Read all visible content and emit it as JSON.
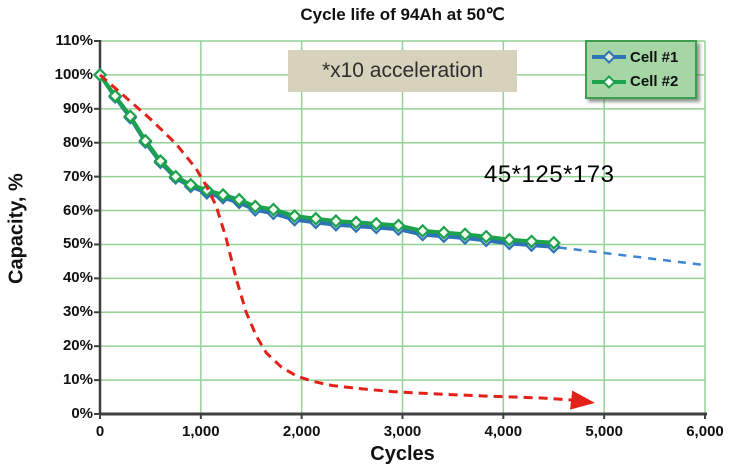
{
  "chart": {
    "title": "Cycle life of 94Ah at  50℃",
    "ylabel": "Capacity, %",
    "xlabel": "Cycles",
    "annotation": "*x10 acceleration",
    "dimensions_label": "45*125*173"
  },
  "colors": {
    "grid": "#92d295",
    "axis": "#3f3f3f",
    "plot_border": "#92d295",
    "legend_fill": "#a6d6a6",
    "legend_border": "#3e9e4e",
    "annotation_bg": "#d6d2bc",
    "cell1_blue": "#2e74b5",
    "cell2_green": "#1ca24c",
    "acceleration_red": "#e32119",
    "extrapolation_blue": "#3c86d2"
  },
  "chart_data": {
    "type": "line",
    "title": "Cycle life of 94Ah at 50℃",
    "xlabel": "Cycles",
    "ylabel": "Capacity, %",
    "xlim": [
      0,
      6000
    ],
    "ylim": [
      0,
      110
    ],
    "grid": true,
    "legend_position": "top-right",
    "x_ticks": [
      {
        "value": 0,
        "label": "0"
      },
      {
        "value": 1000,
        "label": "1,000"
      },
      {
        "value": 2000,
        "label": "2,000"
      },
      {
        "value": 3000,
        "label": "3,000"
      },
      {
        "value": 4000,
        "label": "4,000"
      },
      {
        "value": 5000,
        "label": "5,000"
      },
      {
        "value": 6000,
        "label": "6,000"
      }
    ],
    "y_ticks": [
      {
        "value": 0,
        "label": "0%"
      },
      {
        "value": 10,
        "label": "10%"
      },
      {
        "value": 20,
        "label": "20%"
      },
      {
        "value": 30,
        "label": "30%"
      },
      {
        "value": 40,
        "label": "40%"
      },
      {
        "value": 50,
        "label": "50%"
      },
      {
        "value": 60,
        "label": "60%"
      },
      {
        "value": 70,
        "label": "70%"
      },
      {
        "value": 80,
        "label": "80%"
      },
      {
        "value": 90,
        "label": "90%"
      },
      {
        "value": 100,
        "label": "100%"
      },
      {
        "value": 110,
        "label": "110%"
      }
    ],
    "series": [
      {
        "name": "Cell #1",
        "color": "#2e74b5",
        "marker": "diamond",
        "marker_fill": "#eaf3fb",
        "style": "solid",
        "points": [
          [
            0,
            100
          ],
          [
            150,
            93.5
          ],
          [
            300,
            87.4
          ],
          [
            450,
            80.2
          ],
          [
            600,
            74.2
          ],
          [
            750,
            69.6
          ],
          [
            900,
            67.1
          ],
          [
            1060,
            65.2
          ],
          [
            1220,
            63.8
          ],
          [
            1380,
            62.4
          ],
          [
            1540,
            60.2
          ],
          [
            1720,
            59.2
          ],
          [
            1930,
            57.3
          ],
          [
            2140,
            56.5
          ],
          [
            2340,
            55.8
          ],
          [
            2540,
            55.4
          ],
          [
            2740,
            55.0
          ],
          [
            2960,
            54.5
          ],
          [
            3200,
            52.9
          ],
          [
            3410,
            52.4
          ],
          [
            3620,
            51.9
          ],
          [
            3830,
            51.2
          ],
          [
            4060,
            50.3
          ],
          [
            4280,
            49.8
          ],
          [
            4500,
            49.3
          ]
        ]
      },
      {
        "name": "Cell #2",
        "color": "#1ca24c",
        "marker": "diamond",
        "marker_fill": "#f5faf0",
        "style": "solid",
        "points": [
          [
            0,
            100
          ],
          [
            150,
            93.8
          ],
          [
            300,
            87.8
          ],
          [
            450,
            80.6
          ],
          [
            600,
            74.6
          ],
          [
            750,
            70.0
          ],
          [
            900,
            67.6
          ],
          [
            1060,
            66.0
          ],
          [
            1220,
            64.6
          ],
          [
            1380,
            63.2
          ],
          [
            1540,
            61.2
          ],
          [
            1720,
            60.3
          ],
          [
            1930,
            58.4
          ],
          [
            2140,
            57.6
          ],
          [
            2340,
            56.9
          ],
          [
            2540,
            56.5
          ],
          [
            2740,
            56.1
          ],
          [
            2960,
            55.6
          ],
          [
            3200,
            54.0
          ],
          [
            3410,
            53.5
          ],
          [
            3620,
            53.0
          ],
          [
            3830,
            52.3
          ],
          [
            4060,
            51.4
          ],
          [
            4280,
            50.9
          ],
          [
            4500,
            50.5
          ]
        ]
      },
      {
        "name": "x10-acceleration-reference",
        "color": "#e32119",
        "marker": "none",
        "style": "dashed",
        "arrow_end": true,
        "in_legend": false,
        "points": [
          [
            0,
            100
          ],
          [
            250,
            93.5
          ],
          [
            500,
            87
          ],
          [
            750,
            79.8
          ],
          [
            950,
            72.5
          ],
          [
            1050,
            67.5
          ],
          [
            1150,
            61.5
          ],
          [
            1250,
            52
          ],
          [
            1350,
            40
          ],
          [
            1450,
            30
          ],
          [
            1550,
            23
          ],
          [
            1650,
            18
          ],
          [
            1800,
            13.8
          ],
          [
            1950,
            11.2
          ],
          [
            2100,
            9.7
          ],
          [
            2300,
            8.4
          ],
          [
            2600,
            7.4
          ],
          [
            2900,
            6.6
          ],
          [
            3200,
            6.1
          ],
          [
            3500,
            5.7
          ],
          [
            3800,
            5.3
          ],
          [
            4100,
            5.0
          ],
          [
            4400,
            4.7
          ],
          [
            4650,
            4.2
          ],
          [
            4820,
            3.6
          ]
        ]
      },
      {
        "name": "cell1-extrapolation",
        "color": "#3c86d2",
        "marker": "none",
        "style": "dashed",
        "in_legend": false,
        "points": [
          [
            4550,
            49.1
          ],
          [
            6000,
            43.9
          ]
        ]
      }
    ]
  }
}
